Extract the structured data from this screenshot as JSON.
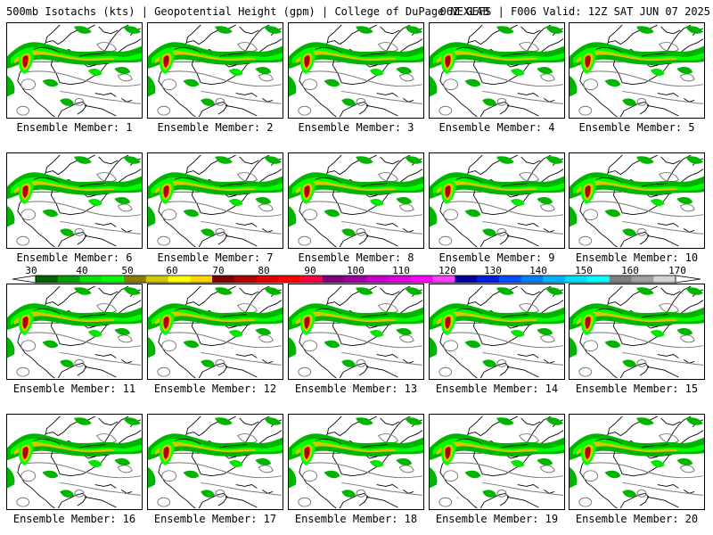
{
  "header": {
    "left": "500mb Isotachs (kts) | Geopotential Height (gpm) | College of DuPage NEXLAB",
    "right": "06Z GEFS | F006 Valid: 12Z SAT JUN 07 2025"
  },
  "members": [
    {
      "label": "Ensemble Member: 1"
    },
    {
      "label": "Ensemble Member: 2"
    },
    {
      "label": "Ensemble Member: 3"
    },
    {
      "label": "Ensemble Member: 4"
    },
    {
      "label": "Ensemble Member: 5"
    },
    {
      "label": "Ensemble Member: 6"
    },
    {
      "label": "Ensemble Member: 7"
    },
    {
      "label": "Ensemble Member: 8"
    },
    {
      "label": "Ensemble Member: 9"
    },
    {
      "label": "Ensemble Member: 10"
    },
    {
      "label": "Ensemble Member: 11"
    },
    {
      "label": "Ensemble Member: 12"
    },
    {
      "label": "Ensemble Member: 13"
    },
    {
      "label": "Ensemble Member: 14"
    },
    {
      "label": "Ensemble Member: 15"
    },
    {
      "label": "Ensemble Member: 16"
    },
    {
      "label": "Ensemble Member: 17"
    },
    {
      "label": "Ensemble Member: 18"
    },
    {
      "label": "Ensemble Member: 19"
    },
    {
      "label": "Ensemble Member: 20"
    }
  ],
  "colorbar": {
    "ticks": [
      "30",
      "40",
      "50",
      "60",
      "70",
      "80",
      "90",
      "100",
      "110",
      "120",
      "130",
      "140",
      "150",
      "160",
      "170"
    ],
    "colors": [
      "#006400",
      "#00a000",
      "#00e600",
      "#00ff00",
      "#8b7d00",
      "#d2c800",
      "#ffff00",
      "#ffd700",
      "#800000",
      "#b40000",
      "#e60000",
      "#ff0000",
      "#ff0040",
      "#800080",
      "#a000a0",
      "#c800c8",
      "#e000e0",
      "#ff00ff",
      "#ff40ff",
      "#0000a0",
      "#0020e0",
      "#0050ff",
      "#0080ff",
      "#00b4ff",
      "#00e0ff",
      "#00ffff",
      "#808080",
      "#a0a0a0",
      "#d3d3d3"
    ]
  }
}
